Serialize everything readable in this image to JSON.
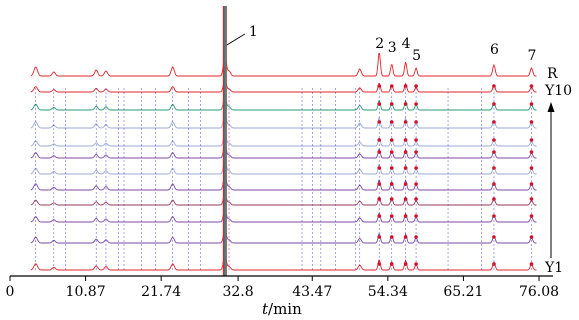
{
  "chart_data": {
    "type": "line",
    "title": "",
    "xlabel_prefix": "t",
    "xlabel_suffix": "/min",
    "xlabel": "t/min",
    "ylabel": "",
    "xlim": [
      0,
      76.08
    ],
    "x_ticks": [
      "0",
      "10.87",
      "21.74",
      "32.8",
      "43.47",
      "54.34",
      "65.21",
      "76.08"
    ],
    "x_tick_values": [
      0,
      10.87,
      21.74,
      32.8,
      43.47,
      54.34,
      65.21,
      76.08
    ],
    "grid": false,
    "legend": "none",
    "traces": [
      {
        "name": "R",
        "color": "#e0242a"
      },
      {
        "name": "",
        "color": "#e0242a"
      },
      {
        "name": "",
        "color": "#2b9a72"
      },
      {
        "name": "",
        "color": "#9aa7d6"
      },
      {
        "name": "",
        "color": "#9aa7d6"
      },
      {
        "name": "",
        "color": "#7b4aa6"
      },
      {
        "name": "",
        "color": "#9aa7d6"
      },
      {
        "name": "",
        "color": "#7b4aa6"
      },
      {
        "name": "",
        "color": "#9a3a5c"
      },
      {
        "name": "",
        "color": "#7b4aa6"
      },
      {
        "name": "",
        "color": "#7b4aa6"
      },
      {
        "name": "",
        "color": "#e0242a"
      }
    ],
    "trace_labels": {
      "reference": "R",
      "top": "Y10",
      "bottom": "Y1"
    },
    "main_peak": {
      "label": "1",
      "t": 30.9
    },
    "labeled_peaks": [
      {
        "label": "1",
        "t": 30.9
      },
      {
        "label": "2",
        "t": 53.1
      },
      {
        "label": "3",
        "t": 54.9
      },
      {
        "label": "4",
        "t": 56.9
      },
      {
        "label": "5",
        "t": 58.4
      },
      {
        "label": "6",
        "t": 69.6
      },
      {
        "label": "7",
        "t": 75.0
      }
    ],
    "minor_peaks": [
      3.7,
      6.3,
      12.4,
      13.8,
      23.4,
      31.5,
      50.3
    ],
    "matched_peak_lines": [
      3.7,
      6.3,
      8.0,
      12.4,
      13.8,
      15.6,
      16.4,
      18.9,
      20.9,
      23.4,
      25.7,
      27.4,
      31.5,
      42.0,
      43.5,
      44.7,
      46.8,
      49.7,
      50.3,
      53.1,
      54.9,
      56.9,
      58.4,
      63.0,
      67.8,
      69.6,
      75.0
    ],
    "colors": {
      "reference": "#e0242a",
      "axis": "#000000",
      "guide_line": "#3b3bc8",
      "marker": "#d0102a"
    }
  }
}
